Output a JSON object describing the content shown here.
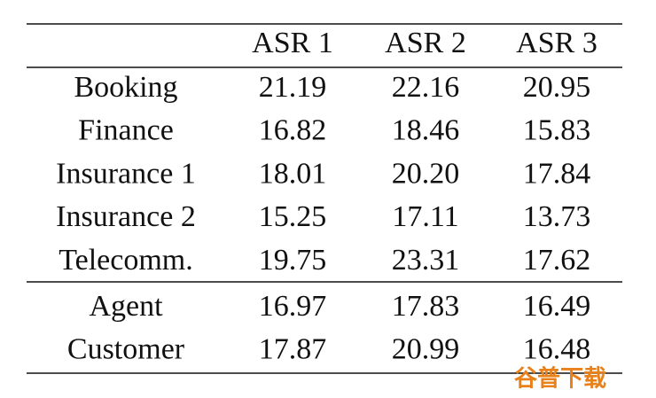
{
  "table": {
    "header": [
      "ASR 1",
      "ASR 2",
      "ASR 3"
    ],
    "sections": [
      [
        [
          "Booking",
          "21.19",
          "22.16",
          "20.95"
        ],
        [
          "Finance",
          "16.82",
          "18.46",
          "15.83"
        ],
        [
          "Insurance 1",
          "18.01",
          "20.20",
          "17.84"
        ],
        [
          "Insurance 2",
          "15.25",
          "17.11",
          "13.73"
        ],
        [
          "Telecomm.",
          "19.75",
          "23.31",
          "17.62"
        ]
      ],
      [
        [
          "Agent",
          "16.97",
          "17.83",
          "16.49"
        ],
        [
          "Customer",
          "17.87",
          "20.99",
          "16.48"
        ]
      ]
    ]
  },
  "watermark": "谷普下载"
}
